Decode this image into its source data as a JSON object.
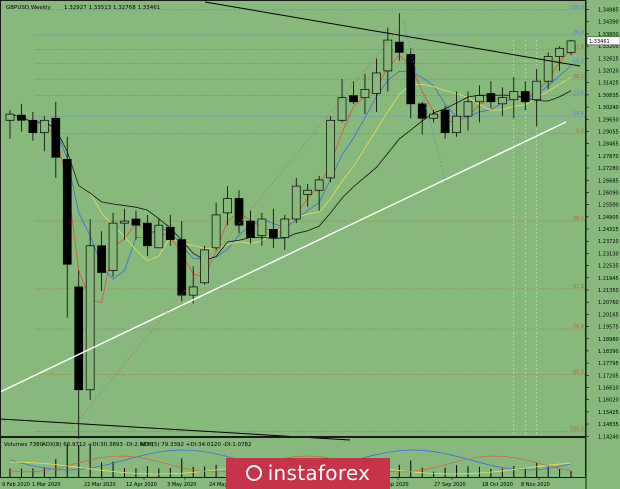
{
  "header": {
    "symbol": "GBPUSD,Weekly",
    "ohlc": "1.32927 1.33513 1.32768 1.33461"
  },
  "indicator_header": {
    "volumes": "Volumes 7380",
    "adx": "ADX(8) 66.9712 +DI:30.3893 -DI:2.5873",
    "adx2": "ADX(5) 79.3392 +DI:34.0120 -DI:1.0782"
  },
  "watermark": "instaforex",
  "colors": {
    "background": "#86b97b",
    "bull_candle": "#86b97b",
    "bear_candle": "#000000",
    "trendline": "#ffffff",
    "resistance": "#000000",
    "fib": "#b96a3a",
    "fib_blue": "#5a7fe0"
  },
  "chart_data": {
    "type": "candlestick",
    "title": "GBPUSD,Weekly",
    "ylim": [
      1.1435,
      1.3535
    ],
    "price_ticks": [
      1.34985,
      1.3439,
      1.338,
      1.33205,
      1.32615,
      1.3202,
      1.31425,
      1.30835,
      1.3024,
      1.2965,
      1.29055,
      1.28465,
      1.2787,
      1.2728,
      1.26685,
      1.2609,
      1.255,
      1.24905,
      1.24315,
      1.2372,
      1.2313,
      1.22535,
      1.21945,
      1.2135,
      1.2076,
      1.20165,
      1.19575,
      1.1898,
      1.1839,
      1.17795,
      1.17205,
      1.1661,
      1.1602,
      1.15425,
      1.14835,
      1.1424
    ],
    "date_labels": [
      "9 Feb 2020",
      "1 Mar 2020",
      "22 Mar 2020",
      "12 Apr 2020",
      "3 May 2020",
      "24 May 2020",
      "6 Sep 2020",
      "27 Sep 2020",
      "18 Oct 2020",
      "8 Nov 2020"
    ],
    "current_price": "1.33461",
    "fib_levels": [
      {
        "label": "100.0",
        "price": 1.3497,
        "color": "#5a7fe0"
      },
      {
        "label": "76.4",
        "price": 1.3375,
        "color": "#5a7fe0"
      },
      {
        "label": "61.8",
        "price": 1.3305,
        "color": "#b96a3a"
      },
      {
        "label": "50.0",
        "price": 1.3235,
        "color": "#5a7fe0"
      },
      {
        "label": "38.2",
        "price": 1.316,
        "color": "#b96a3a"
      },
      {
        "label": "23.6",
        "price": 1.308,
        "color": "#5a7fe0"
      },
      {
        "label": "14.6",
        "price": 1.298,
        "color": "#5a7fe0"
      },
      {
        "label": "0.0",
        "price": 1.2895,
        "color": "#b96a3a"
      },
      {
        "label": "38.2",
        "price": 1.247,
        "color": "#b96a3a"
      },
      {
        "label": "61.8",
        "price": 1.214,
        "color": "#b96a3a"
      },
      {
        "label": "76.4",
        "price": 1.1945,
        "color": "#b96a3a"
      },
      {
        "label": "88.6",
        "price": 1.1725,
        "color": "#b96a3a"
      },
      {
        "label": "100.0",
        "price": 1.1447,
        "color": "#b96a3a"
      }
    ],
    "candles": [
      {
        "o": 1.296,
        "h": 1.301,
        "l": 1.287,
        "c": 1.299
      },
      {
        "o": 1.2985,
        "h": 1.304,
        "l": 1.2905,
        "c": 1.296
      },
      {
        "o": 1.296,
        "h": 1.3,
        "l": 1.286,
        "c": 1.29
      },
      {
        "o": 1.29,
        "h": 1.298,
        "l": 1.281,
        "c": 1.296
      },
      {
        "o": 1.297,
        "h": 1.305,
        "l": 1.268,
        "c": 1.278
      },
      {
        "o": 1.277,
        "h": 1.288,
        "l": 1.2,
        "c": 1.226
      },
      {
        "o": 1.215,
        "h": 1.223,
        "l": 1.141,
        "c": 1.165
      },
      {
        "o": 1.165,
        "h": 1.248,
        "l": 1.16,
        "c": 1.235
      },
      {
        "o": 1.235,
        "h": 1.242,
        "l": 1.213,
        "c": 1.222
      },
      {
        "o": 1.223,
        "h": 1.251,
        "l": 1.22,
        "c": 1.246
      },
      {
        "o": 1.246,
        "h": 1.253,
        "l": 1.238,
        "c": 1.247
      },
      {
        "o": 1.248,
        "h": 1.252,
        "l": 1.238,
        "c": 1.245
      },
      {
        "o": 1.246,
        "h": 1.25,
        "l": 1.23,
        "c": 1.235
      },
      {
        "o": 1.234,
        "h": 1.248,
        "l": 1.234,
        "c": 1.245
      },
      {
        "o": 1.244,
        "h": 1.25,
        "l": 1.235,
        "c": 1.238
      },
      {
        "o": 1.238,
        "h": 1.247,
        "l": 1.208,
        "c": 1.211
      },
      {
        "o": 1.211,
        "h": 1.225,
        "l": 1.207,
        "c": 1.215
      },
      {
        "o": 1.217,
        "h": 1.235,
        "l": 1.216,
        "c": 1.233
      },
      {
        "o": 1.234,
        "h": 1.256,
        "l": 1.233,
        "c": 1.25
      },
      {
        "o": 1.251,
        "h": 1.264,
        "l": 1.245,
        "c": 1.258
      },
      {
        "o": 1.258,
        "h": 1.262,
        "l": 1.241,
        "c": 1.245
      },
      {
        "o": 1.247,
        "h": 1.252,
        "l": 1.236,
        "c": 1.239
      },
      {
        "o": 1.24,
        "h": 1.251,
        "l": 1.235,
        "c": 1.248
      },
      {
        "o": 1.243,
        "h": 1.253,
        "l": 1.234,
        "c": 1.239
      },
      {
        "o": 1.239,
        "h": 1.25,
        "l": 1.233,
        "c": 1.248
      },
      {
        "o": 1.248,
        "h": 1.268,
        "l": 1.246,
        "c": 1.264
      },
      {
        "o": 1.26,
        "h": 1.265,
        "l": 1.254,
        "c": 1.262
      },
      {
        "o": 1.262,
        "h": 1.269,
        "l": 1.252,
        "c": 1.267
      },
      {
        "o": 1.268,
        "h": 1.298,
        "l": 1.266,
        "c": 1.296
      },
      {
        "o": 1.296,
        "h": 1.316,
        "l": 1.295,
        "c": 1.307
      },
      {
        "o": 1.308,
        "h": 1.315,
        "l": 1.304,
        "c": 1.305
      },
      {
        "o": 1.307,
        "h": 1.3185,
        "l": 1.299,
        "c": 1.311
      },
      {
        "o": 1.309,
        "h": 1.326,
        "l": 1.3,
        "c": 1.319
      },
      {
        "o": 1.32,
        "h": 1.341,
        "l": 1.31,
        "c": 1.335
      },
      {
        "o": 1.334,
        "h": 1.348,
        "l": 1.325,
        "c": 1.329
      },
      {
        "o": 1.328,
        "h": 1.331,
        "l": 1.297,
        "c": 1.304
      },
      {
        "o": 1.304,
        "h": 1.305,
        "l": 1.289,
        "c": 1.297
      },
      {
        "o": 1.297,
        "h": 1.301,
        "l": 1.295,
        "c": 1.299
      },
      {
        "o": 1.301,
        "h": 1.303,
        "l": 1.287,
        "c": 1.29
      },
      {
        "o": 1.29,
        "h": 1.31,
        "l": 1.288,
        "c": 1.298
      },
      {
        "o": 1.298,
        "h": 1.31,
        "l": 1.291,
        "c": 1.305
      },
      {
        "o": 1.305,
        "h": 1.313,
        "l": 1.295,
        "c": 1.308
      },
      {
        "o": 1.309,
        "h": 1.315,
        "l": 1.302,
        "c": 1.305
      },
      {
        "o": 1.304,
        "h": 1.312,
        "l": 1.298,
        "c": 1.307
      },
      {
        "o": 1.306,
        "h": 1.317,
        "l": 1.297,
        "c": 1.31
      },
      {
        "o": 1.31,
        "h": 1.315,
        "l": 1.301,
        "c": 1.305
      },
      {
        "o": 1.306,
        "h": 1.321,
        "l": 1.293,
        "c": 1.315
      },
      {
        "o": 1.315,
        "h": 1.329,
        "l": 1.311,
        "c": 1.327
      },
      {
        "o": 1.327,
        "h": 1.332,
        "l": 1.32,
        "c": 1.331
      },
      {
        "o": 1.329,
        "h": 1.3351,
        "l": 1.3277,
        "c": 1.3346
      }
    ]
  }
}
